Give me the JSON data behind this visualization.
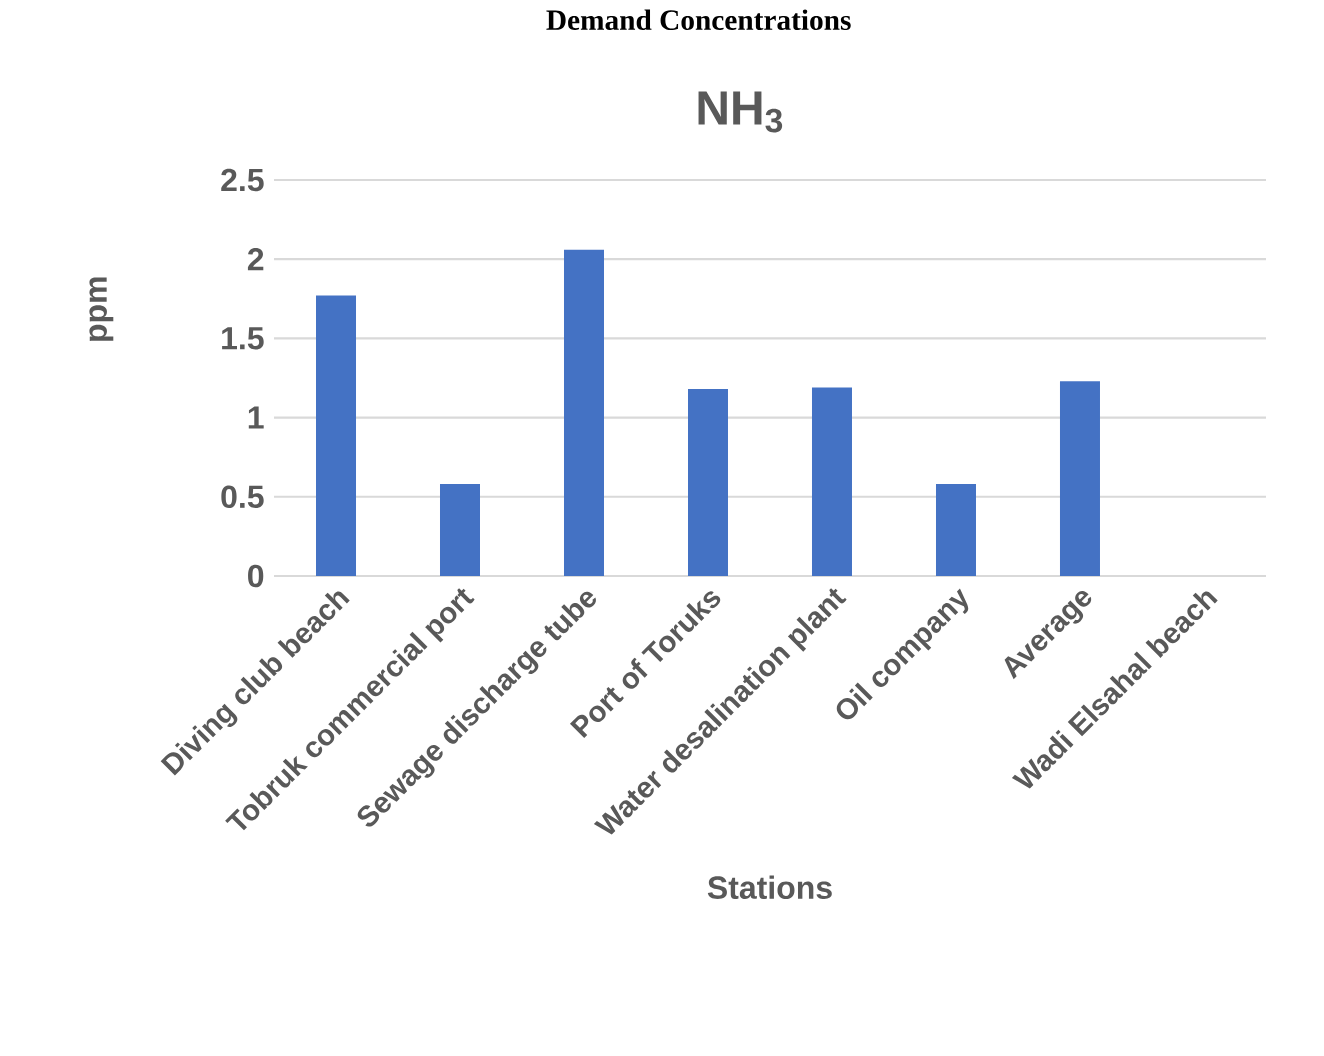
{
  "chart_data": {
    "type": "bar",
    "title": "NH$_{3}$",
    "xlabel": "Stations",
    "ylabel": "ppm",
    "annotations": [
      "Demand Concentrations"
    ],
    "categories": [
      "Diving club beach",
      "Tobruk commercial port",
      "Sewage discharge tube",
      "Port of Toruks",
      "Water desalination plant",
      "Oil company",
      "Average",
      "Wadi Elsahal beach"
    ],
    "values": [
      1.77,
      0.58,
      2.06,
      1.18,
      1.19,
      0.58,
      1.23,
      null
    ],
    "color": "#4472c4",
    "ylim": [
      0,
      2.5
    ],
    "yticks": [
      0,
      0.5,
      1,
      1.5,
      2,
      2.5
    ],
    "grid": "y"
  }
}
